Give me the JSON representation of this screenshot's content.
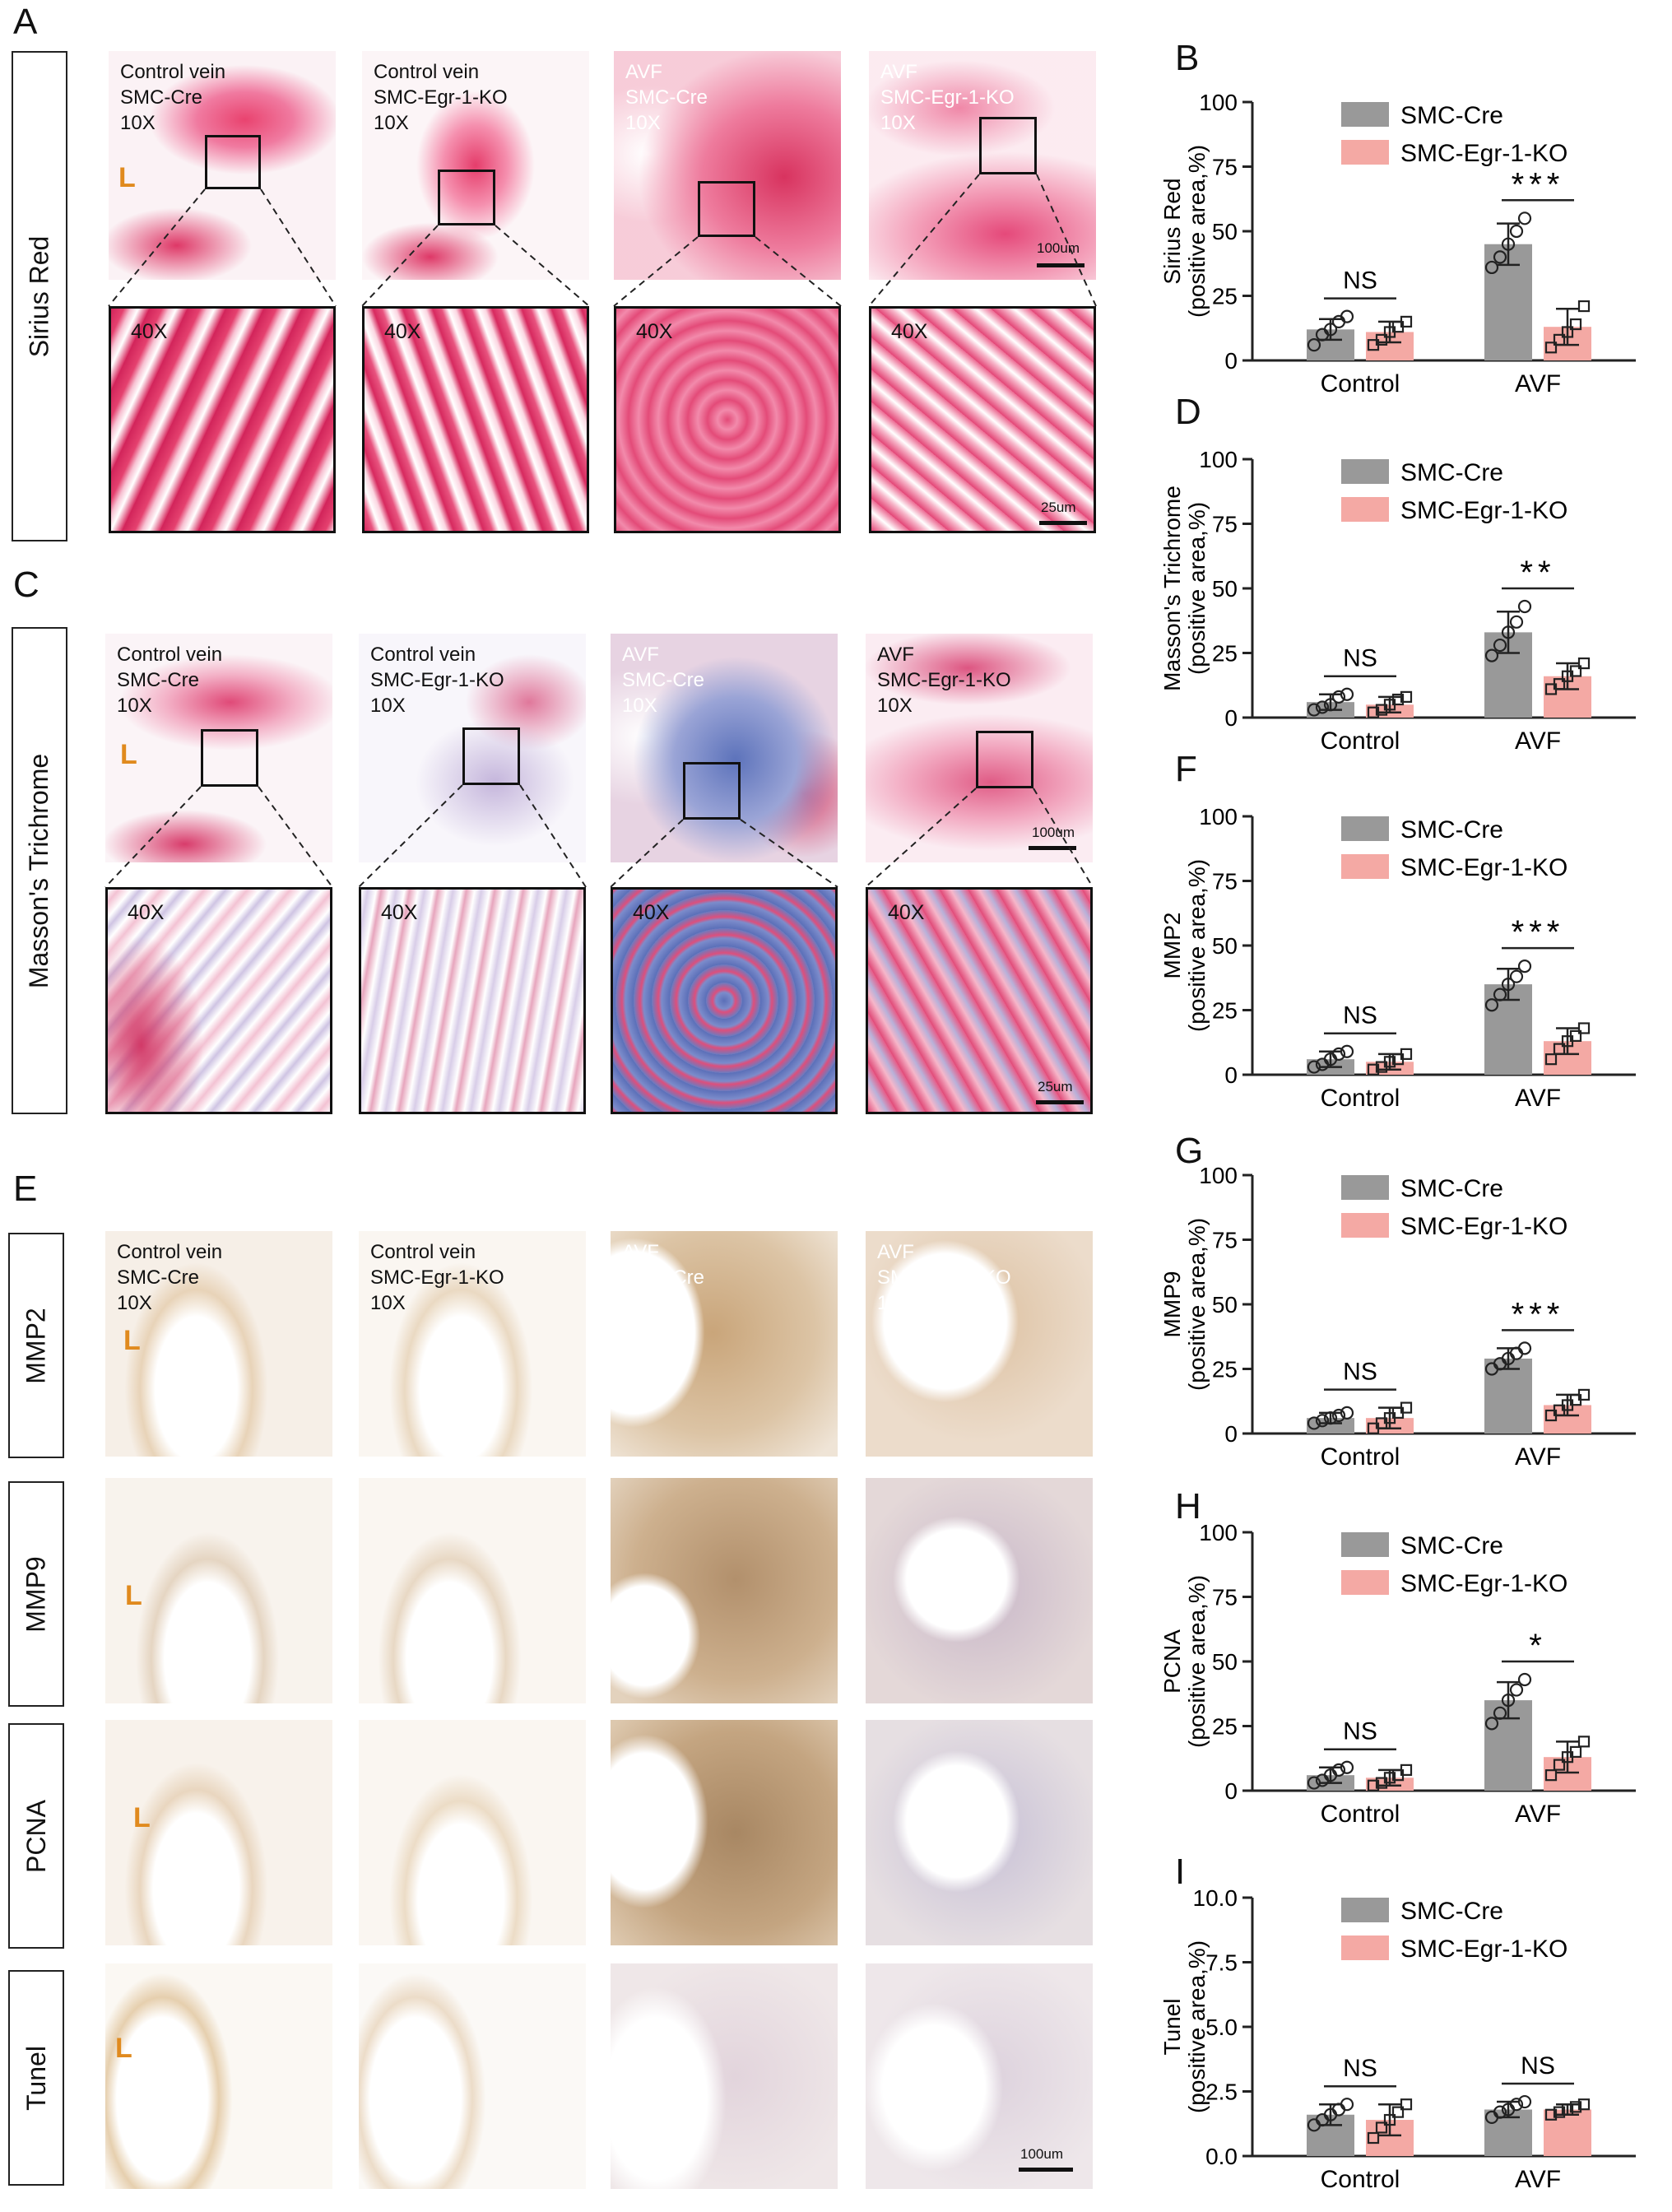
{
  "panel_letters": [
    "A",
    "B",
    "C",
    "D",
    "E",
    "F",
    "G",
    "H",
    "I"
  ],
  "row_labels": {
    "sirius": "Sirius Red",
    "masson": "Masson's Trichrome",
    "mmp2": "MMP2",
    "mmp9": "MMP9",
    "pcna": "PCNA",
    "tunel": "Tunel"
  },
  "captions": {
    "cv_cre": "Control vein\nSMC-Cre\n10X",
    "cv_ko": "Control vein\nSMC-Egr-1-KO\n10X",
    "avf_cre": "AVF\nSMC-Cre\n10X",
    "avf_ko": "AVF\nSMC-Egr-1-KO\n10X",
    "mag40": "40X",
    "lumen": "L",
    "scale_100": "100um",
    "scale_25": "25um"
  },
  "colors": {
    "smc_cre": "#999999",
    "smc_ko": "#f4a9a4",
    "sirius_stain": "#d22a5e",
    "masson_blue": "#5a6fb8",
    "ihc_brown": "#b88a55"
  },
  "chart_data": [
    {
      "type": "bar",
      "panel": "B",
      "ylabel": "Sirius Red\n(positive area,%)",
      "categories": [
        "Control",
        "AVF"
      ],
      "ylim": [
        0,
        100
      ],
      "yticks": [
        0,
        25,
        50,
        75,
        100
      ],
      "ytick_labels": [
        "0",
        "25",
        "50",
        "75",
        "100"
      ],
      "series": [
        {
          "name": "SMC-Cre",
          "values": [
            12,
            45
          ],
          "errors": [
            4,
            8
          ],
          "points": [
            [
              6,
              10,
              12,
              15,
              17
            ],
            [
              36,
              40,
              45,
              50,
              55
            ]
          ]
        },
        {
          "name": "SMC-Egr-1-KO",
          "values": [
            11,
            13
          ],
          "errors": [
            4,
            7
          ],
          "points": [
            [
              6,
              8,
              11,
              13,
              15
            ],
            [
              5,
              8,
              11,
              14,
              21
            ]
          ]
        }
      ],
      "significance": [
        "NS",
        "***"
      ]
    },
    {
      "type": "bar",
      "panel": "D",
      "ylabel": "Masson's Trichrome\n(positive area,%)",
      "categories": [
        "Control",
        "AVF"
      ],
      "ylim": [
        0,
        100
      ],
      "yticks": [
        0,
        25,
        50,
        75,
        100
      ],
      "ytick_labels": [
        "0",
        "25",
        "50",
        "75",
        "100"
      ],
      "series": [
        {
          "name": "SMC-Cre",
          "values": [
            6,
            33
          ],
          "errors": [
            3,
            8
          ],
          "points": [
            [
              3,
              4,
              5,
              8,
              9
            ],
            [
              24,
              28,
              33,
              37,
              43
            ]
          ]
        },
        {
          "name": "SMC-Egr-1-KO",
          "values": [
            5,
            16
          ],
          "errors": [
            3,
            5
          ],
          "points": [
            [
              2,
              3,
              5,
              7,
              8
            ],
            [
              11,
              13,
              16,
              18,
              21
            ]
          ]
        }
      ],
      "significance": [
        "NS",
        "**"
      ]
    },
    {
      "type": "bar",
      "panel": "F",
      "ylabel": "MMP2\n(positive area,%)",
      "categories": [
        "Control",
        "AVF"
      ],
      "ylim": [
        0,
        100
      ],
      "yticks": [
        0,
        25,
        50,
        75,
        100
      ],
      "ytick_labels": [
        "0",
        "25",
        "50",
        "75",
        "100"
      ],
      "series": [
        {
          "name": "SMC-Cre",
          "values": [
            6,
            35
          ],
          "errors": [
            3,
            6
          ],
          "points": [
            [
              3,
              4,
              6,
              8,
              9
            ],
            [
              27,
              31,
              35,
              38,
              42
            ]
          ]
        },
        {
          "name": "SMC-Egr-1-KO",
          "values": [
            5,
            13
          ],
          "errors": [
            3,
            5
          ],
          "points": [
            [
              2,
              3,
              5,
              6,
              8
            ],
            [
              6,
              10,
              13,
              15,
              18
            ]
          ]
        }
      ],
      "significance": [
        "NS",
        "***"
      ]
    },
    {
      "type": "bar",
      "panel": "G",
      "ylabel": "MMP9\n(positive area,%)",
      "categories": [
        "Control",
        "AVF"
      ],
      "ylim": [
        0,
        100
      ],
      "yticks": [
        0,
        25,
        50,
        75,
        100
      ],
      "ytick_labels": [
        "0",
        "25",
        "50",
        "75",
        "100"
      ],
      "series": [
        {
          "name": "SMC-Cre",
          "values": [
            6,
            29
          ],
          "errors": [
            2,
            4
          ],
          "points": [
            [
              4,
              5,
              6,
              7,
              8
            ],
            [
              25,
              27,
              29,
              31,
              33
            ]
          ]
        },
        {
          "name": "SMC-Egr-1-KO",
          "values": [
            6,
            11
          ],
          "errors": [
            4,
            4
          ],
          "points": [
            [
              2,
              4,
              6,
              8,
              10
            ],
            [
              7,
              9,
              11,
              13,
              15
            ]
          ]
        }
      ],
      "significance": [
        "NS",
        "***"
      ]
    },
    {
      "type": "bar",
      "panel": "H",
      "ylabel": "PCNA\n(positive area,%)",
      "categories": [
        "Control",
        "AVF"
      ],
      "ylim": [
        0,
        100
      ],
      "yticks": [
        0,
        25,
        50,
        75,
        100
      ],
      "ytick_labels": [
        "0",
        "25",
        "50",
        "75",
        "100"
      ],
      "series": [
        {
          "name": "SMC-Cre",
          "values": [
            6,
            35
          ],
          "errors": [
            3,
            7
          ],
          "points": [
            [
              3,
              4,
              6,
              8,
              9
            ],
            [
              26,
              30,
              35,
              39,
              43
            ]
          ]
        },
        {
          "name": "SMC-Egr-1-KO",
          "values": [
            5,
            13
          ],
          "errors": [
            3,
            6
          ],
          "points": [
            [
              2,
              3,
              5,
              6,
              8
            ],
            [
              6,
              10,
              13,
              15,
              19
            ]
          ]
        }
      ],
      "significance": [
        "NS",
        "*"
      ]
    },
    {
      "type": "bar",
      "panel": "I",
      "ylabel": "Tunel\n(positive area,%)",
      "categories": [
        "Control",
        "AVF"
      ],
      "ylim": [
        0,
        10
      ],
      "yticks": [
        0,
        2.5,
        5,
        7.5,
        10
      ],
      "ytick_labels": [
        "0.0",
        "2.5",
        "5.0",
        "7.5",
        "10.0"
      ],
      "series": [
        {
          "name": "SMC-Cre",
          "values": [
            1.6,
            1.8
          ],
          "errors": [
            0.4,
            0.3
          ],
          "points": [
            [
              1.2,
              1.4,
              1.6,
              1.8,
              2.0
            ],
            [
              1.5,
              1.7,
              1.8,
              2.0,
              2.1
            ]
          ]
        },
        {
          "name": "SMC-Egr-1-KO",
          "values": [
            1.4,
            1.8
          ],
          "errors": [
            0.6,
            0.2
          ],
          "points": [
            [
              0.7,
              1.1,
              1.4,
              1.7,
              2.0
            ],
            [
              1.6,
              1.7,
              1.8,
              1.9,
              2.0
            ]
          ]
        }
      ],
      "significance": [
        "NS",
        "NS"
      ]
    }
  ]
}
